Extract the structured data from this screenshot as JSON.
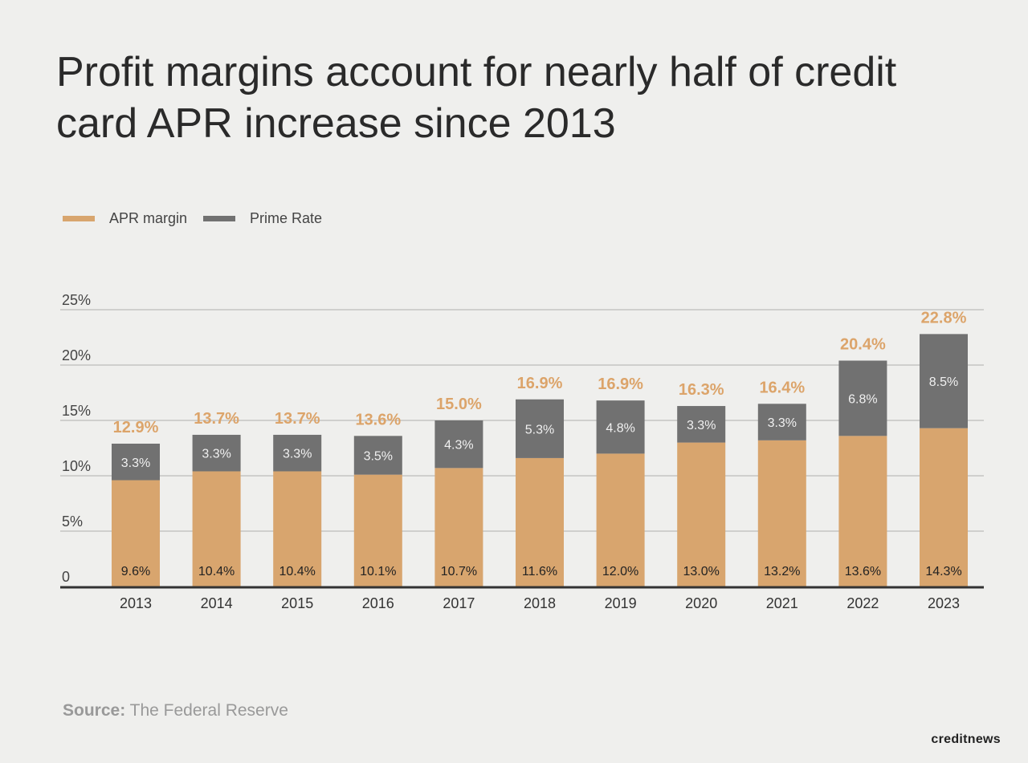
{
  "title": "Profit margins account for nearly half of credit card APR increase since 2013",
  "source_label": "Source:",
  "source_text": "The Federal Reserve",
  "logo": "creditnews",
  "colors": {
    "apr_margin": "#d8a56e",
    "prime_rate": "#717171",
    "total_label": "#dca46a",
    "background": "#efefed"
  },
  "chart_data": {
    "type": "bar",
    "stacked": true,
    "title": "Profit margins account for nearly half of credit card APR increase since 2013",
    "xlabel": "",
    "ylabel": "",
    "ylim": [
      0,
      25
    ],
    "yticks": [
      "0",
      "5%",
      "10%",
      "15%",
      "20%",
      "25%"
    ],
    "grid": true,
    "legend_position": "top-left",
    "categories": [
      "2013",
      "2014",
      "2015",
      "2016",
      "2017",
      "2018",
      "2019",
      "2020",
      "2021",
      "2022",
      "2023"
    ],
    "series": [
      {
        "name": "APR margin",
        "values": [
          9.6,
          10.4,
          10.4,
          10.1,
          10.7,
          11.6,
          12.0,
          13.0,
          13.2,
          13.6,
          14.3
        ]
      },
      {
        "name": "Prime Rate",
        "values": [
          3.3,
          3.3,
          3.3,
          3.5,
          4.3,
          5.3,
          4.8,
          3.3,
          3.3,
          6.8,
          8.5
        ]
      }
    ],
    "totals": [
      12.9,
      13.7,
      13.7,
      13.6,
      15.0,
      16.9,
      16.9,
      16.3,
      16.4,
      20.4,
      22.8
    ]
  }
}
